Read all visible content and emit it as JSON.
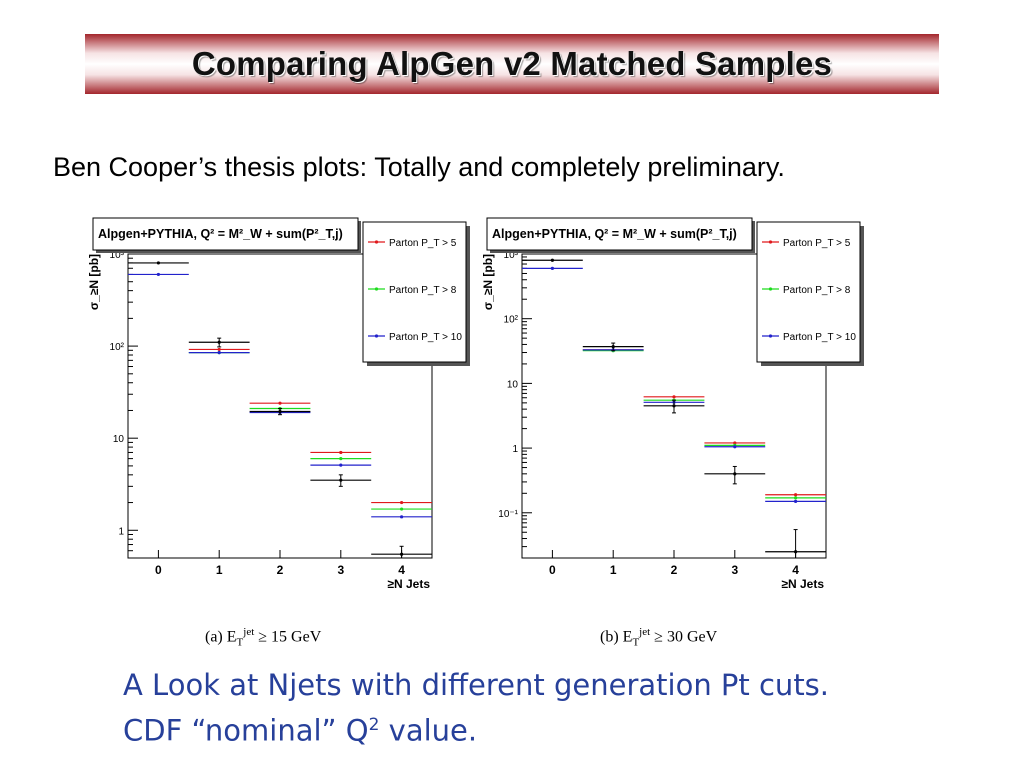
{
  "slide": {
    "title": "Comparing AlpGen v2 Matched Samples",
    "subtitle": "Ben Cooper’s thesis plots: Totally and completely preliminary.",
    "footer_line1": "A Look at Njets with different generation Pt cuts.",
    "footer_line2_prefix": "CDF “nominal” Q",
    "footer_line2_sup": "2",
    "footer_line2_suffix": " value."
  },
  "colors": {
    "title_red": "#a3262c",
    "footer_blue": "#27409a",
    "series_red": "#e0191c",
    "series_green": "#1ddc1d",
    "series_blue": "#2222cc",
    "data_black": "#000000"
  },
  "chart_data": [
    {
      "type": "scatter",
      "title": "Alpgen+PYTHIA, Q² = M²_W + sum(P²_T,j)",
      "caption": "(a) E_T^jet ≥ 15 GeV",
      "xlabel": "≥N Jets",
      "ylabel": "σ_≥N [pb]",
      "log_y": true,
      "ylim": [
        0.5,
        1000
      ],
      "xlim": [
        -0.5,
        4.5
      ],
      "x_ticks": [
        "0",
        "1",
        "2",
        "3",
        "4"
      ],
      "y_ticks": [
        {
          "v": 1,
          "label": "1"
        },
        {
          "v": 10,
          "label": "10"
        },
        {
          "v": 100,
          "label": "10²"
        },
        {
          "v": 1000,
          "label": "10³"
        }
      ],
      "legend": {
        "position": "top-right"
      },
      "series": [
        {
          "name": "Parton P_T > 5",
          "color": "#e0191c",
          "values": [
            null,
            92,
            24,
            7,
            2
          ]
        },
        {
          "name": "Parton P_T > 8",
          "color": "#1ddc1d",
          "values": [
            null,
            85,
            21,
            6,
            1.7
          ]
        },
        {
          "name": "Parton P_T > 10",
          "color": "#2222cc",
          "values": [
            600,
            85,
            19,
            5.1,
            1.4
          ]
        },
        {
          "name": "",
          "color": "#000000",
          "values": [
            800,
            110,
            19.5,
            3.5,
            0.55
          ],
          "errors": [
            0,
            12,
            1.5,
            0.5,
            0.12
          ]
        }
      ]
    },
    {
      "type": "scatter",
      "title": "Alpgen+PYTHIA, Q² = M²_W + sum(P²_T,j)",
      "caption": "(b) E_T^jet ≥ 30 GeV",
      "xlabel": "≥N Jets",
      "ylabel": "σ_≥N [pb]",
      "log_y": true,
      "ylim": [
        0.02,
        1000
      ],
      "xlim": [
        -0.5,
        4.5
      ],
      "x_ticks": [
        "0",
        "1",
        "2",
        "3",
        "4"
      ],
      "y_ticks": [
        {
          "v": 0.1,
          "label": "10⁻¹"
        },
        {
          "v": 1,
          "label": "1"
        },
        {
          "v": 10,
          "label": "10"
        },
        {
          "v": 100,
          "label": "10²"
        },
        {
          "v": 1000,
          "label": "10³"
        }
      ],
      "legend": {
        "position": "top-right"
      },
      "series": [
        {
          "name": "Parton P_T > 5",
          "color": "#e0191c",
          "values": [
            null,
            33,
            6.2,
            1.2,
            0.19
          ]
        },
        {
          "name": "Parton P_T > 8",
          "color": "#1ddc1d",
          "values": [
            null,
            32,
            5.5,
            1.1,
            0.17
          ]
        },
        {
          "name": "Parton P_T > 10",
          "color": "#2222cc",
          "values": [
            600,
            33,
            5.1,
            1.05,
            0.15
          ]
        },
        {
          "name": "",
          "color": "#000000",
          "values": [
            800,
            37,
            4.5,
            0.4,
            0.025
          ],
          "errors": [
            0,
            5,
            1,
            0.12,
            0.03
          ]
        }
      ]
    }
  ]
}
